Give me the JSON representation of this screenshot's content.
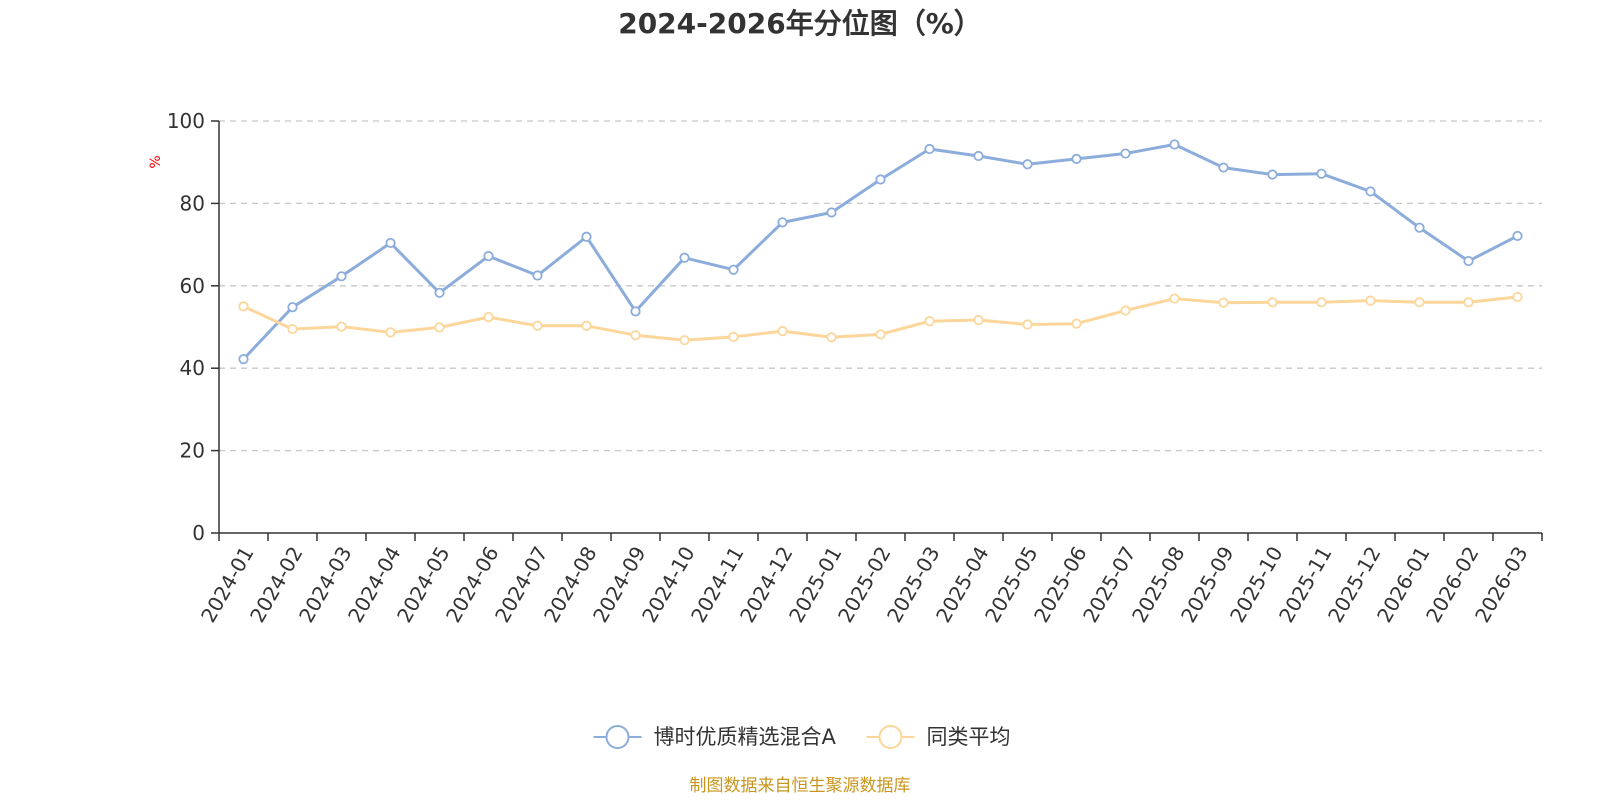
{
  "chart_data": {
    "type": "line",
    "title": "2024-2026年分位图（%）",
    "ylabel": "%",
    "xlabel": "",
    "ylim": [
      0,
      100
    ],
    "yticks": [
      0,
      20,
      40,
      60,
      80,
      100
    ],
    "grid": true,
    "legend_position": "bottom-center",
    "categories": [
      "2024-01",
      "2024-02",
      "2024-03",
      "2024-04",
      "2024-05",
      "2024-06",
      "2024-07",
      "2024-08",
      "2024-09",
      "2024-10",
      "2024-11",
      "2024-12",
      "2025-01",
      "2025-02",
      "2025-03",
      "2025-04",
      "2025-05",
      "2025-06",
      "2025-07",
      "2025-08",
      "2025-09",
      "2025-10",
      "2025-11",
      "2025-12",
      "2026-01",
      "2026-02",
      "2026-03"
    ],
    "series": [
      {
        "name": "博时优质精选混合A",
        "color": "#8caddb",
        "values": [
          42.2,
          54.8,
          62.3,
          70.4,
          58.3,
          67.2,
          62.5,
          71.9,
          53.8,
          66.8,
          63.9,
          75.4,
          77.8,
          85.8,
          93.2,
          91.5,
          89.5,
          90.8,
          92.1,
          94.3,
          88.7,
          87.0,
          87.2,
          82.9,
          74.1,
          66.0,
          72.1
        ]
      },
      {
        "name": "同类平均",
        "color": "#fcd69a",
        "values": [
          55.0,
          49.5,
          50.1,
          48.7,
          49.9,
          52.4,
          50.3,
          50.3,
          48.0,
          46.8,
          47.6,
          49.0,
          47.5,
          48.2,
          51.4,
          51.7,
          50.6,
          50.8,
          54.0,
          56.9,
          55.9,
          56.0,
          56.0,
          56.4,
          56.0,
          56.0,
          57.3
        ]
      }
    ]
  },
  "footer": {
    "source": "制图数据来自恒生聚源数据库"
  }
}
